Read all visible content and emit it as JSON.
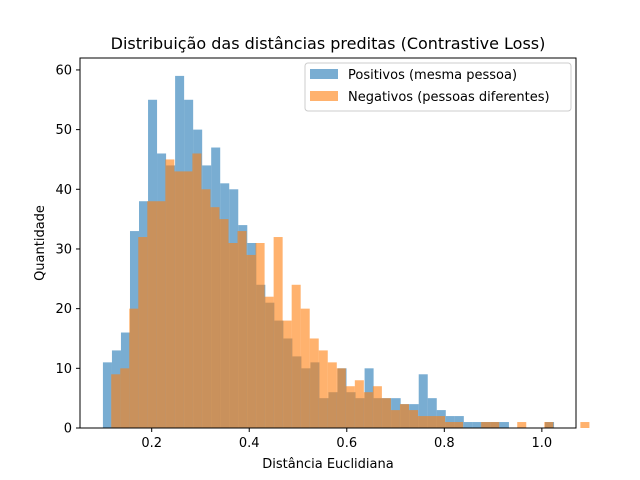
{
  "chart_data": {
    "type": "histogram",
    "title": "Distribuição das distâncias preditas (Contrastive Loss)",
    "xlabel": "Distância Euclidiana",
    "ylabel": "Quantidade",
    "xlim": [
      0.053,
      1.07
    ],
    "ylim": [
      0,
      62
    ],
    "xticks": [
      0.2,
      0.4,
      0.6,
      0.8,
      1.0
    ],
    "xtick_labels": [
      "0.2",
      "0.4",
      "0.6",
      "0.8",
      "1.0"
    ],
    "yticks": [
      0,
      10,
      20,
      30,
      40,
      50,
      60
    ],
    "ytick_labels": [
      "0",
      "10",
      "20",
      "30",
      "40",
      "50",
      "60"
    ],
    "grid": false,
    "legend_position": "top-right",
    "series": [
      {
        "name": "Positivos (mesma pessoa)",
        "color": "#1f77b4",
        "alpha": 0.6,
        "bin_start": 0.1,
        "bin_width": 0.0185,
        "counts": [
          11,
          13,
          16,
          33,
          38,
          55,
          46,
          44,
          59,
          55,
          50,
          44,
          47,
          41,
          40,
          34,
          31,
          24,
          21,
          18,
          15,
          12,
          10,
          11,
          5,
          6,
          10,
          6,
          5,
          10,
          5,
          5,
          5,
          4,
          4,
          9,
          5,
          3,
          2,
          2,
          1,
          1,
          1,
          1,
          1,
          0,
          0,
          0,
          0,
          1,
          0,
          0
        ]
      },
      {
        "name": "Negativos (pessoas diferentes)",
        "color": "#ff7f0e",
        "alpha": 0.6,
        "bin_start": 0.117,
        "bin_width": 0.0185,
        "counts": [
          9,
          10,
          20,
          32,
          38,
          38,
          45,
          43,
          43,
          46,
          40,
          37,
          35,
          31,
          33,
          29,
          31,
          22,
          32,
          18,
          24,
          20,
          15,
          13,
          11,
          10,
          7,
          8,
          6,
          7,
          5,
          3,
          4,
          3,
          2,
          2,
          2,
          1,
          1,
          0,
          0,
          1,
          1,
          0,
          0,
          1,
          0,
          0,
          1,
          0,
          0,
          0,
          1
        ]
      }
    ]
  }
}
